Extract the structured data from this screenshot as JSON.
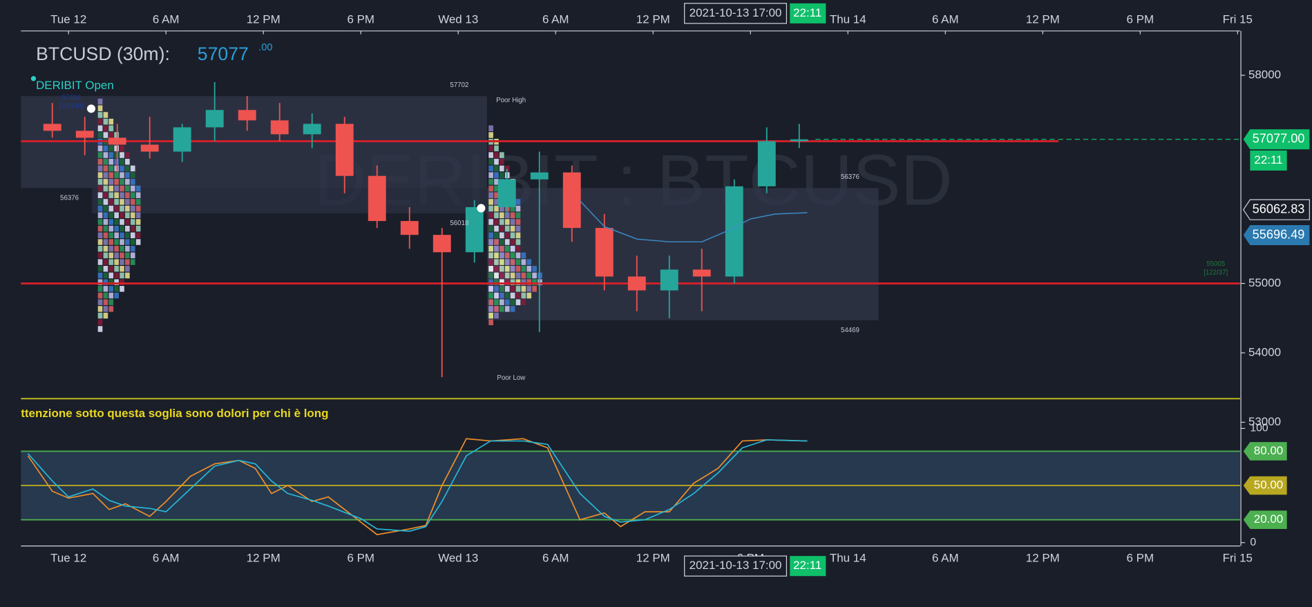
{
  "header": {
    "symbol": "BTCUSD (30m):",
    "last": "57077",
    "last_decimals": ".00"
  },
  "watermark": "DERIBIT : BTCUSD",
  "crosshair": {
    "time": "2021-10-13 17:00",
    "countdown": "22:11"
  },
  "annotations": [
    "57702",
    "Poor High",
    "56376",
    "56376",
    "56018",
    "54469",
    "Poor Low",
    "55005",
    "[122/37]",
    "57404",
    "[30/140]",
    "DERIBIT Open",
    "ttenzione  sotto questa soglia  sono dolori per  chi è long"
  ],
  "chart_data": [
    {
      "type": "candlestick",
      "xlim": [
        "2021-10-11T21:04",
        "2021-10-15T00:09"
      ],
      "xticks": [
        {
          "value": "2021-10-12T00:00",
          "label": "Tue 12"
        },
        {
          "value": "2021-10-12T06:00",
          "label": "6 AM"
        },
        {
          "value": "2021-10-12T12:00",
          "label": "12 PM"
        },
        {
          "value": "2021-10-12T18:00",
          "label": "6 PM"
        },
        {
          "value": "2021-10-13T00:00",
          "label": "Wed 13"
        },
        {
          "value": "2021-10-13T06:00",
          "label": "6 AM"
        },
        {
          "value": "2021-10-13T12:00",
          "label": "12 PM"
        },
        {
          "value": "2021-10-13T18:00",
          "label": "6 PM"
        },
        {
          "value": "2021-10-14T00:00",
          "label": "Thu 14"
        },
        {
          "value": "2021-10-14T06:00",
          "label": "6 AM"
        },
        {
          "value": "2021-10-14T12:00",
          "label": "12 PM"
        },
        {
          "value": "2021-10-14T18:00",
          "label": "6 PM"
        },
        {
          "value": "2021-10-15T00:00",
          "label": "Fri 15"
        }
      ],
      "ylim": [
        52916,
        58639
      ],
      "yticks": [
        53000,
        54000,
        55000,
        58000
      ],
      "up_color": "#26a69a",
      "down_color": "#ef5350",
      "x": [
        "2021-10-11T22:00",
        "2021-10-12T00:00",
        "2021-10-12T02:00",
        "2021-10-12T04:00",
        "2021-10-12T06:00",
        "2021-10-12T08:00",
        "2021-10-12T10:00",
        "2021-10-12T12:00",
        "2021-10-12T14:00",
        "2021-10-12T16:00",
        "2021-10-12T18:00",
        "2021-10-12T20:00",
        "2021-10-12T22:00",
        "2021-10-13T00:00",
        "2021-10-13T02:00",
        "2021-10-13T04:00",
        "2021-10-13T06:00",
        "2021-10-13T08:00",
        "2021-10-13T10:00",
        "2021-10-13T12:00",
        "2021-10-13T14:00",
        "2021-10-13T16:00",
        "2021-10-13T18:00",
        "2021-10-13T20:00"
      ],
      "open": [
        57300,
        57200,
        57100,
        57000,
        56900,
        57250,
        57500,
        57350,
        57150,
        57300,
        56550,
        55900,
        55700,
        55450,
        56100,
        56500,
        56600,
        55800,
        55100,
        54900,
        55200,
        55100,
        56400,
        57050
      ],
      "high": [
        57600,
        57400,
        57300,
        57400,
        57300,
        57900,
        57700,
        57600,
        57450,
        57400,
        56700,
        56100,
        55800,
        56200,
        56650,
        56900,
        56700,
        56000,
        55400,
        55400,
        55500,
        56500,
        57250,
        57300
      ],
      "low": [
        57100,
        56850,
        56600,
        56800,
        56750,
        57050,
        57200,
        57050,
        56950,
        56300,
        55800,
        55500,
        53650,
        55300,
        56000,
        54300,
        55600,
        54900,
        54600,
        54500,
        54600,
        55000,
        56300,
        56950
      ],
      "close": [
        57200,
        57100,
        57000,
        56900,
        57250,
        57500,
        57350,
        57150,
        57300,
        56550,
        55900,
        55700,
        55450,
        56100,
        56500,
        56600,
        55800,
        55100,
        54900,
        55200,
        55100,
        56400,
        57050,
        57077
      ],
      "overlay": {
        "color": "#3a8fc8",
        "x": [
          "2021-10-13T07:30",
          "2021-10-13T09:00",
          "2021-10-13T11:00",
          "2021-10-13T13:00",
          "2021-10-13T15:00",
          "2021-10-13T16:30",
          "2021-10-13T18:00",
          "2021-10-13T19:30",
          "2021-10-13T21:30"
        ],
        "values": [
          56190,
          55820,
          55640,
          55600,
          55600,
          55750,
          55930,
          56000,
          56020
        ]
      },
      "price_lines": [
        {
          "value": 57050,
          "color": "#d0202a"
        },
        {
          "value": 55000,
          "color": "#d0202a"
        },
        {
          "value": 53340,
          "color": "#c8c020"
        }
      ],
      "price_labels": [
        {
          "value": 57077,
          "label": "57077.00",
          "color": "#0fbf6a"
        },
        {
          "value": 56062.83,
          "label": "56062.83",
          "color": "#1a1e29"
        },
        {
          "value": 55696.49,
          "label": "55696.49",
          "color": "#2a7ab0"
        }
      ]
    },
    {
      "type": "line",
      "ylim": [
        0,
        100
      ],
      "yticks": [
        0,
        100
      ],
      "x": [
        "2021-10-11T21:30",
        "2021-10-11T23:00",
        "2021-10-12T00:00",
        "2021-10-12T01:30",
        "2021-10-12T02:30",
        "2021-10-12T03:30",
        "2021-10-12T05:00",
        "2021-10-12T06:00",
        "2021-10-12T07:30",
        "2021-10-12T09:00",
        "2021-10-12T10:30",
        "2021-10-12T11:30",
        "2021-10-12T12:30",
        "2021-10-12T13:30",
        "2021-10-12T15:00",
        "2021-10-12T16:00",
        "2021-10-12T18:00",
        "2021-10-12T19:00",
        "2021-10-12T21:00",
        "2021-10-12T22:00",
        "2021-10-12T23:00",
        "2021-10-13T00:30",
        "2021-10-13T02:00",
        "2021-10-13T04:00",
        "2021-10-13T05:30",
        "2021-10-13T07:30",
        "2021-10-13T09:00",
        "2021-10-13T10:00",
        "2021-10-13T11:30",
        "2021-10-13T13:00",
        "2021-10-13T14:30",
        "2021-10-13T16:00",
        "2021-10-13T17:30",
        "2021-10-13T19:00",
        "2021-10-13T21:30"
      ],
      "series": [
        {
          "color": "#f0902a",
          "values": [
            76,
            45,
            39,
            43,
            29,
            34,
            23,
            36,
            58,
            69,
            72,
            65,
            43,
            50,
            36,
            40,
            18,
            7,
            12,
            15,
            50,
            91,
            89,
            91,
            83,
            20,
            26,
            14,
            27,
            27,
            52,
            65,
            89,
            90,
            89
          ]
        },
        {
          "color": "#28b8d8",
          "values": [
            78,
            54,
            40,
            47,
            37,
            32,
            30,
            27,
            47,
            67,
            72,
            69,
            54,
            43,
            37,
            32,
            21,
            12,
            10,
            14,
            36,
            76,
            89,
            89,
            86,
            43,
            23,
            18,
            20,
            29,
            43,
            61,
            83,
            90,
            89
          ]
        }
      ],
      "levels": [
        {
          "value": 80,
          "label": "80.00",
          "color": "#4caf50"
        },
        {
          "value": 50,
          "label": "50.00",
          "color": "#b8a820"
        },
        {
          "value": 20,
          "label": "20.00",
          "color": "#4caf50"
        }
      ]
    }
  ]
}
